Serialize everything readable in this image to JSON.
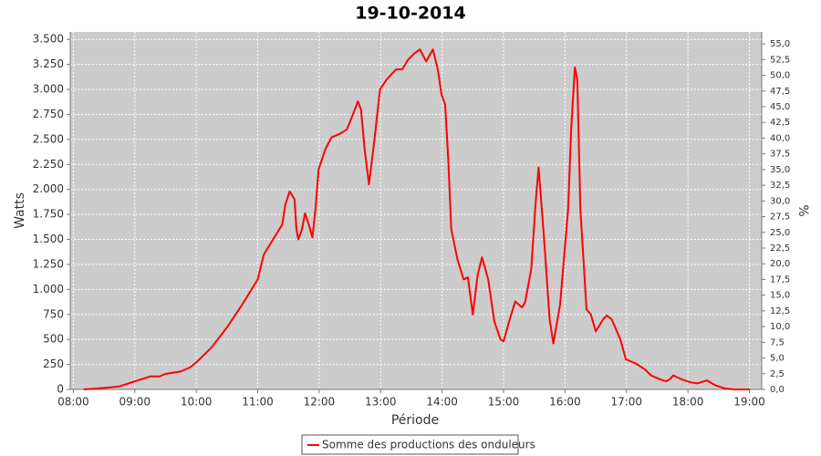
{
  "chart_data": {
    "type": "line",
    "title": "19-10-2014",
    "x_label": "Période",
    "y_label": "Watts",
    "y2_label": "%",
    "xlim": [
      7.95,
      19.2
    ],
    "xticks": [
      {
        "value": 8,
        "label": "08:00"
      },
      {
        "value": 9,
        "label": "09:00"
      },
      {
        "value": 10,
        "label": "10:00"
      },
      {
        "value": 11,
        "label": "11:00"
      },
      {
        "value": 12,
        "label": "12:00"
      },
      {
        "value": 13,
        "label": "13:00"
      },
      {
        "value": 14,
        "label": "14:00"
      },
      {
        "value": 15,
        "label": "15:00"
      },
      {
        "value": 16,
        "label": "16:00"
      },
      {
        "value": 17,
        "label": "17:00"
      },
      {
        "value": 18,
        "label": "18:00"
      },
      {
        "value": 19,
        "label": "19:00"
      }
    ],
    "ylim": [
      0,
      3575
    ],
    "yticks": [
      0,
      250,
      500,
      750,
      {
        "value": 1000,
        "label": "1.000"
      },
      {
        "value": 1250,
        "label": "1.250"
      },
      {
        "value": 1500,
        "label": "1.500"
      },
      {
        "value": 1750,
        "label": "1.750"
      },
      {
        "value": 2000,
        "label": "2.000"
      },
      {
        "value": 2250,
        "label": "2.250"
      },
      {
        "value": 2500,
        "label": "2.500"
      },
      {
        "value": 2750,
        "label": "2.750"
      },
      {
        "value": 3000,
        "label": "3.000"
      },
      {
        "value": 3250,
        "label": "3.250"
      },
      {
        "value": 3500,
        "label": "3.500"
      }
    ],
    "y2lim": [
      0,
      56.9
    ],
    "y2ticks": [
      {
        "value": 0,
        "label": "0,0"
      },
      {
        "value": 2.5,
        "label": "2,5"
      },
      {
        "value": 5,
        "label": "5,0"
      },
      {
        "value": 7.5,
        "label": "7,5"
      },
      {
        "value": 10,
        "label": "10,0"
      },
      {
        "value": 12.5,
        "label": "12,5"
      },
      {
        "value": 15,
        "label": "15,0"
      },
      {
        "value": 17.5,
        "label": "17,5"
      },
      {
        "value": 20,
        "label": "20,0"
      },
      {
        "value": 22.5,
        "label": "22,5"
      },
      {
        "value": 25,
        "label": "25,0"
      },
      {
        "value": 27.5,
        "label": "27,5"
      },
      {
        "value": 30,
        "label": "30,0"
      },
      {
        "value": 32.5,
        "label": "32,5"
      },
      {
        "value": 35,
        "label": "35,0"
      },
      {
        "value": 37.5,
        "label": "37,5"
      },
      {
        "value": 40,
        "label": "40,0"
      },
      {
        "value": 42.5,
        "label": "42,5"
      },
      {
        "value": 45,
        "label": "45,0"
      },
      {
        "value": 47.5,
        "label": "47,5"
      },
      {
        "value": 50,
        "label": "50,0"
      },
      {
        "value": 52.5,
        "label": "52,5"
      },
      {
        "value": 55,
        "label": "55,0"
      }
    ],
    "grid": true,
    "background": "#cccccc",
    "legend": "bottom",
    "x": [
      8.17,
      8.5,
      8.75,
      9.0,
      9.1,
      9.25,
      9.4,
      9.5,
      9.75,
      9.9,
      10.0,
      10.25,
      10.5,
      10.75,
      11.0,
      11.1,
      11.3,
      11.4,
      11.45,
      11.52,
      11.6,
      11.63,
      11.66,
      11.72,
      11.77,
      11.83,
      11.89,
      11.94,
      11.99,
      12.1,
      12.2,
      12.35,
      12.45,
      12.55,
      12.63,
      12.68,
      12.74,
      12.81,
      12.9,
      12.99,
      13.1,
      13.25,
      13.35,
      13.45,
      13.55,
      13.64,
      13.74,
      13.85,
      13.93,
      13.99,
      14.05,
      14.1,
      14.15,
      14.25,
      14.35,
      14.42,
      14.5,
      14.58,
      14.65,
      14.75,
      14.85,
      14.95,
      15.0,
      15.1,
      15.19,
      15.3,
      15.35,
      15.45,
      15.52,
      15.57,
      15.66,
      15.75,
      15.81,
      15.92,
      16.05,
      16.1,
      16.16,
      16.2,
      16.25,
      16.35,
      16.42,
      16.5,
      16.62,
      16.68,
      16.76,
      16.9,
      16.99,
      17.15,
      17.3,
      17.4,
      17.55,
      17.65,
      17.72,
      17.76,
      17.9,
      18.05,
      18.15,
      18.31,
      18.45,
      18.6,
      18.75,
      19.0
    ],
    "series": [
      {
        "name": "Somme des productions des onduleurs",
        "color": "#ff0000",
        "values": [
          0,
          15,
          30,
          80,
          100,
          130,
          130,
          155,
          180,
          220,
          270,
          420,
          620,
          850,
          1100,
          1350,
          1550,
          1650,
          1850,
          1980,
          1900,
          1600,
          1500,
          1600,
          1760,
          1650,
          1520,
          1800,
          2200,
          2400,
          2520,
          2560,
          2600,
          2750,
          2880,
          2800,
          2400,
          2050,
          2500,
          3000,
          3100,
          3200,
          3200,
          3300,
          3360,
          3400,
          3280,
          3400,
          3200,
          2950,
          2850,
          2300,
          1600,
          1300,
          1100,
          1120,
          750,
          1150,
          1320,
          1100,
          680,
          500,
          480,
          700,
          880,
          820,
          870,
          1200,
          1850,
          2220,
          1500,
          700,
          460,
          850,
          1800,
          2600,
          3220,
          3100,
          1800,
          800,
          750,
          580,
          700,
          740,
          700,
          500,
          300,
          260,
          200,
          140,
          100,
          80,
          110,
          140,
          100,
          70,
          60,
          90,
          40,
          10,
          0,
          0
        ]
      }
    ]
  }
}
